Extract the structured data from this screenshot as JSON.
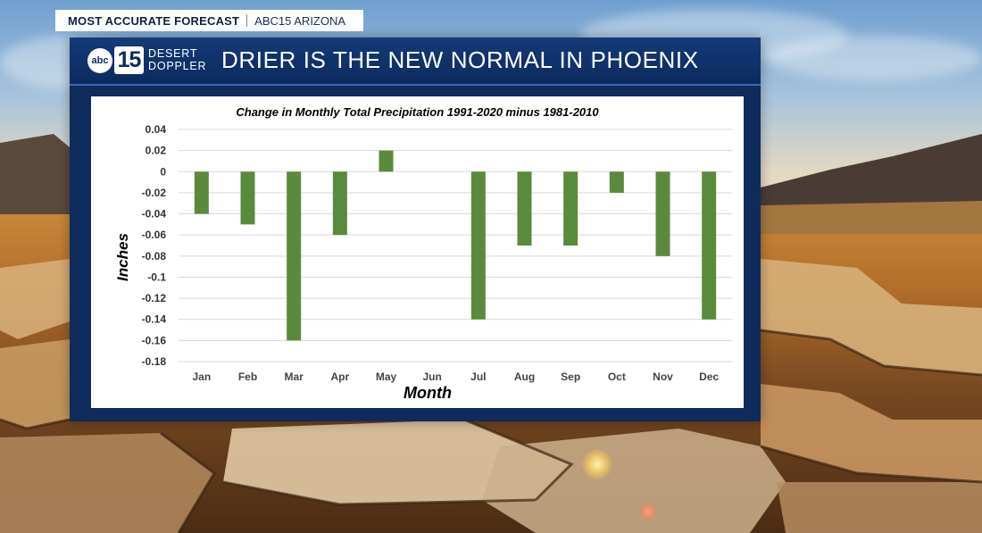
{
  "banner": {
    "left_text": "MOST ACCURATE FORECAST",
    "right_text": "ABC15 ARIZONA"
  },
  "logo": {
    "abc": "abc",
    "number": "15",
    "word1": "DESERT",
    "word2": "DOPPLER"
  },
  "headline": "DRIER IS THE NEW NORMAL IN PHOENIX",
  "colors": {
    "panel": "#0e2b5c",
    "bar": "#5a8a3c",
    "gridline": "#d9d9d9"
  },
  "chart_data": {
    "type": "bar",
    "title": "Change in Monthly Total Precipitation 1991-2020 minus 1981-2010",
    "xlabel": "Month",
    "ylabel": "Inches",
    "categories": [
      "Jan",
      "Feb",
      "Mar",
      "Apr",
      "May",
      "Jun",
      "Jul",
      "Aug",
      "Sep",
      "Oct",
      "Nov",
      "Dec"
    ],
    "values": [
      -0.04,
      -0.05,
      -0.16,
      -0.06,
      0.02,
      0.0,
      -0.14,
      -0.07,
      -0.07,
      -0.02,
      -0.08,
      -0.14
    ],
    "ylim": [
      -0.18,
      0.04
    ],
    "yticks": [
      0.04,
      0.02,
      0,
      -0.02,
      -0.04,
      -0.06,
      -0.08,
      -0.1,
      -0.12,
      -0.14,
      -0.16,
      -0.18
    ],
    "ytick_labels": [
      "0.04",
      "0.02",
      "0",
      "-0.02",
      "-0.04",
      "-0.06",
      "-0.08",
      "-0.1",
      "-0.12",
      "-0.14",
      "-0.16",
      "-0.18"
    ],
    "grid": true,
    "legend": "none"
  }
}
